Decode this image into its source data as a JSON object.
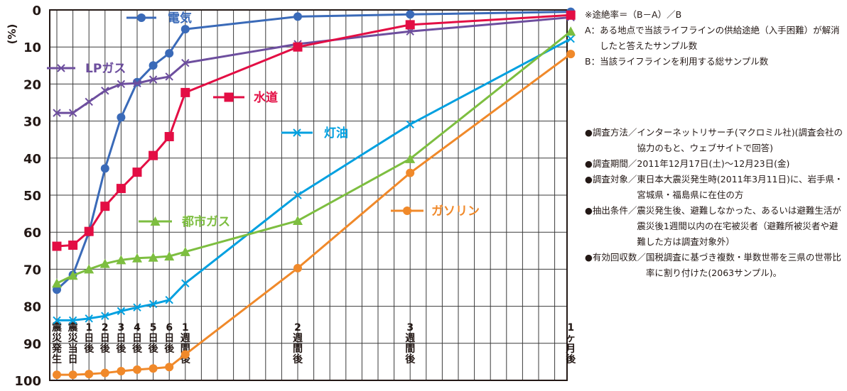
{
  "chart_data": {
    "type": "line",
    "y_unit": "(%)",
    "ylim": [
      0,
      100
    ],
    "y_inverted": true,
    "y_ticks": [
      "0",
      "10",
      "20",
      "30",
      "40",
      "50",
      "60",
      "70",
      "80",
      "90",
      "100"
    ],
    "x_ticks": [
      {
        "label": "震災発生",
        "x": 0
      },
      {
        "label": "震災当日",
        "x": 1
      },
      {
        "label": "1日後",
        "x": 2
      },
      {
        "label": "2日後",
        "x": 3
      },
      {
        "label": "3日後",
        "x": 4
      },
      {
        "label": "4日後",
        "x": 5
      },
      {
        "label": "5日後",
        "x": 6
      },
      {
        "label": "6日後",
        "x": 7
      },
      {
        "label": "1週間後",
        "x": 8
      },
      {
        "label": "2週間後",
        "x": 15
      },
      {
        "label": "3週間後",
        "x": 22
      },
      {
        "label": "1ヶ月後",
        "x": 32
      }
    ],
    "grid": true,
    "series": [
      {
        "name": "電気",
        "color": "#3A6AB8",
        "marker": "circle",
        "x": [
          0,
          1,
          2,
          3,
          4,
          5,
          6,
          7,
          8,
          15,
          22,
          32
        ],
        "y": [
          75.5,
          71.5,
          60,
          42.8,
          29,
          19.5,
          15,
          11.7,
          5.2,
          1.8,
          1.2,
          0.5
        ]
      },
      {
        "name": "LPガス",
        "color": "#6D4E9E",
        "marker": "x",
        "x": [
          0,
          1,
          2,
          3,
          4,
          5,
          6,
          7,
          8,
          15,
          22,
          32
        ],
        "y": [
          27.8,
          27.8,
          24.8,
          21.8,
          20,
          19.8,
          18.8,
          18,
          14.3,
          9.2,
          5.8,
          2
        ]
      },
      {
        "name": "水道",
        "color": "#E30E44",
        "marker": "square",
        "x": [
          0,
          1,
          2,
          3,
          4,
          5,
          6,
          7,
          8,
          15,
          22,
          32
        ],
        "y": [
          63.8,
          63.5,
          59.8,
          53,
          48.2,
          43.8,
          39.3,
          34.2,
          22.3,
          10,
          4,
          1.4
        ]
      },
      {
        "name": "灯油",
        "color": "#00A0E0",
        "marker": "x",
        "x": [
          0,
          1,
          2,
          3,
          4,
          5,
          6,
          7,
          8,
          15,
          22,
          32
        ],
        "y": [
          83.8,
          83.8,
          83.3,
          82.6,
          81.3,
          80.3,
          79.4,
          78.3,
          73.8,
          50,
          30.9,
          7.8
        ]
      },
      {
        "name": "都市ガス",
        "color": "#7DBE40",
        "marker": "triangle",
        "x": [
          0,
          1,
          2,
          3,
          4,
          5,
          6,
          7,
          8,
          15,
          22,
          32
        ],
        "y": [
          73.8,
          71.7,
          70,
          68.5,
          67.5,
          67,
          66.8,
          66.5,
          65.3,
          56.9,
          40.2,
          5.8
        ]
      },
      {
        "name": "ガソリン",
        "color": "#F0892A",
        "marker": "circle",
        "x": [
          0,
          1,
          2,
          3,
          4,
          5,
          6,
          7,
          8,
          15,
          22,
          32
        ],
        "y": [
          98.5,
          98.5,
          98.3,
          98,
          97.5,
          97.1,
          96.8,
          96.4,
          93,
          69.7,
          44,
          11.9
        ]
      }
    ]
  },
  "notes": {
    "formula": "※途絶率＝（B－A）／B",
    "a_key": "A：",
    "a_text": "ある地点で当該ライフラインの供給途絶（入手困難）が解消したと答えたサンプル数",
    "b_key": "B：",
    "b_text": "当該ライフラインを利用する総サンプル数",
    "items": [
      {
        "key": "●調査方法／",
        "text": "インターネットリサーチ(マクロミル社)(調査会社の協力のもと、ウェブサイトで回答)"
      },
      {
        "key": "●調査期間／",
        "text": "2011年12月17日(土)～12月23日(金)"
      },
      {
        "key": "●調査対象／",
        "text": "東日本大震災発生時(2011年3月11日)に、岩手県・宮城県・福島県に在住の方"
      },
      {
        "key": "●抽出条件／",
        "text": "震災発生後、避難しなかった、あるいは避難生活が震災後1週間以内の在宅被災者（避難所被災者や避難した方は調査対象外）"
      },
      {
        "key": "●有効回収数／",
        "text": "国税調査に基づき複数・単数世帯を三県の世帯比率に割り付けた(2063サンプル)。"
      }
    ]
  }
}
